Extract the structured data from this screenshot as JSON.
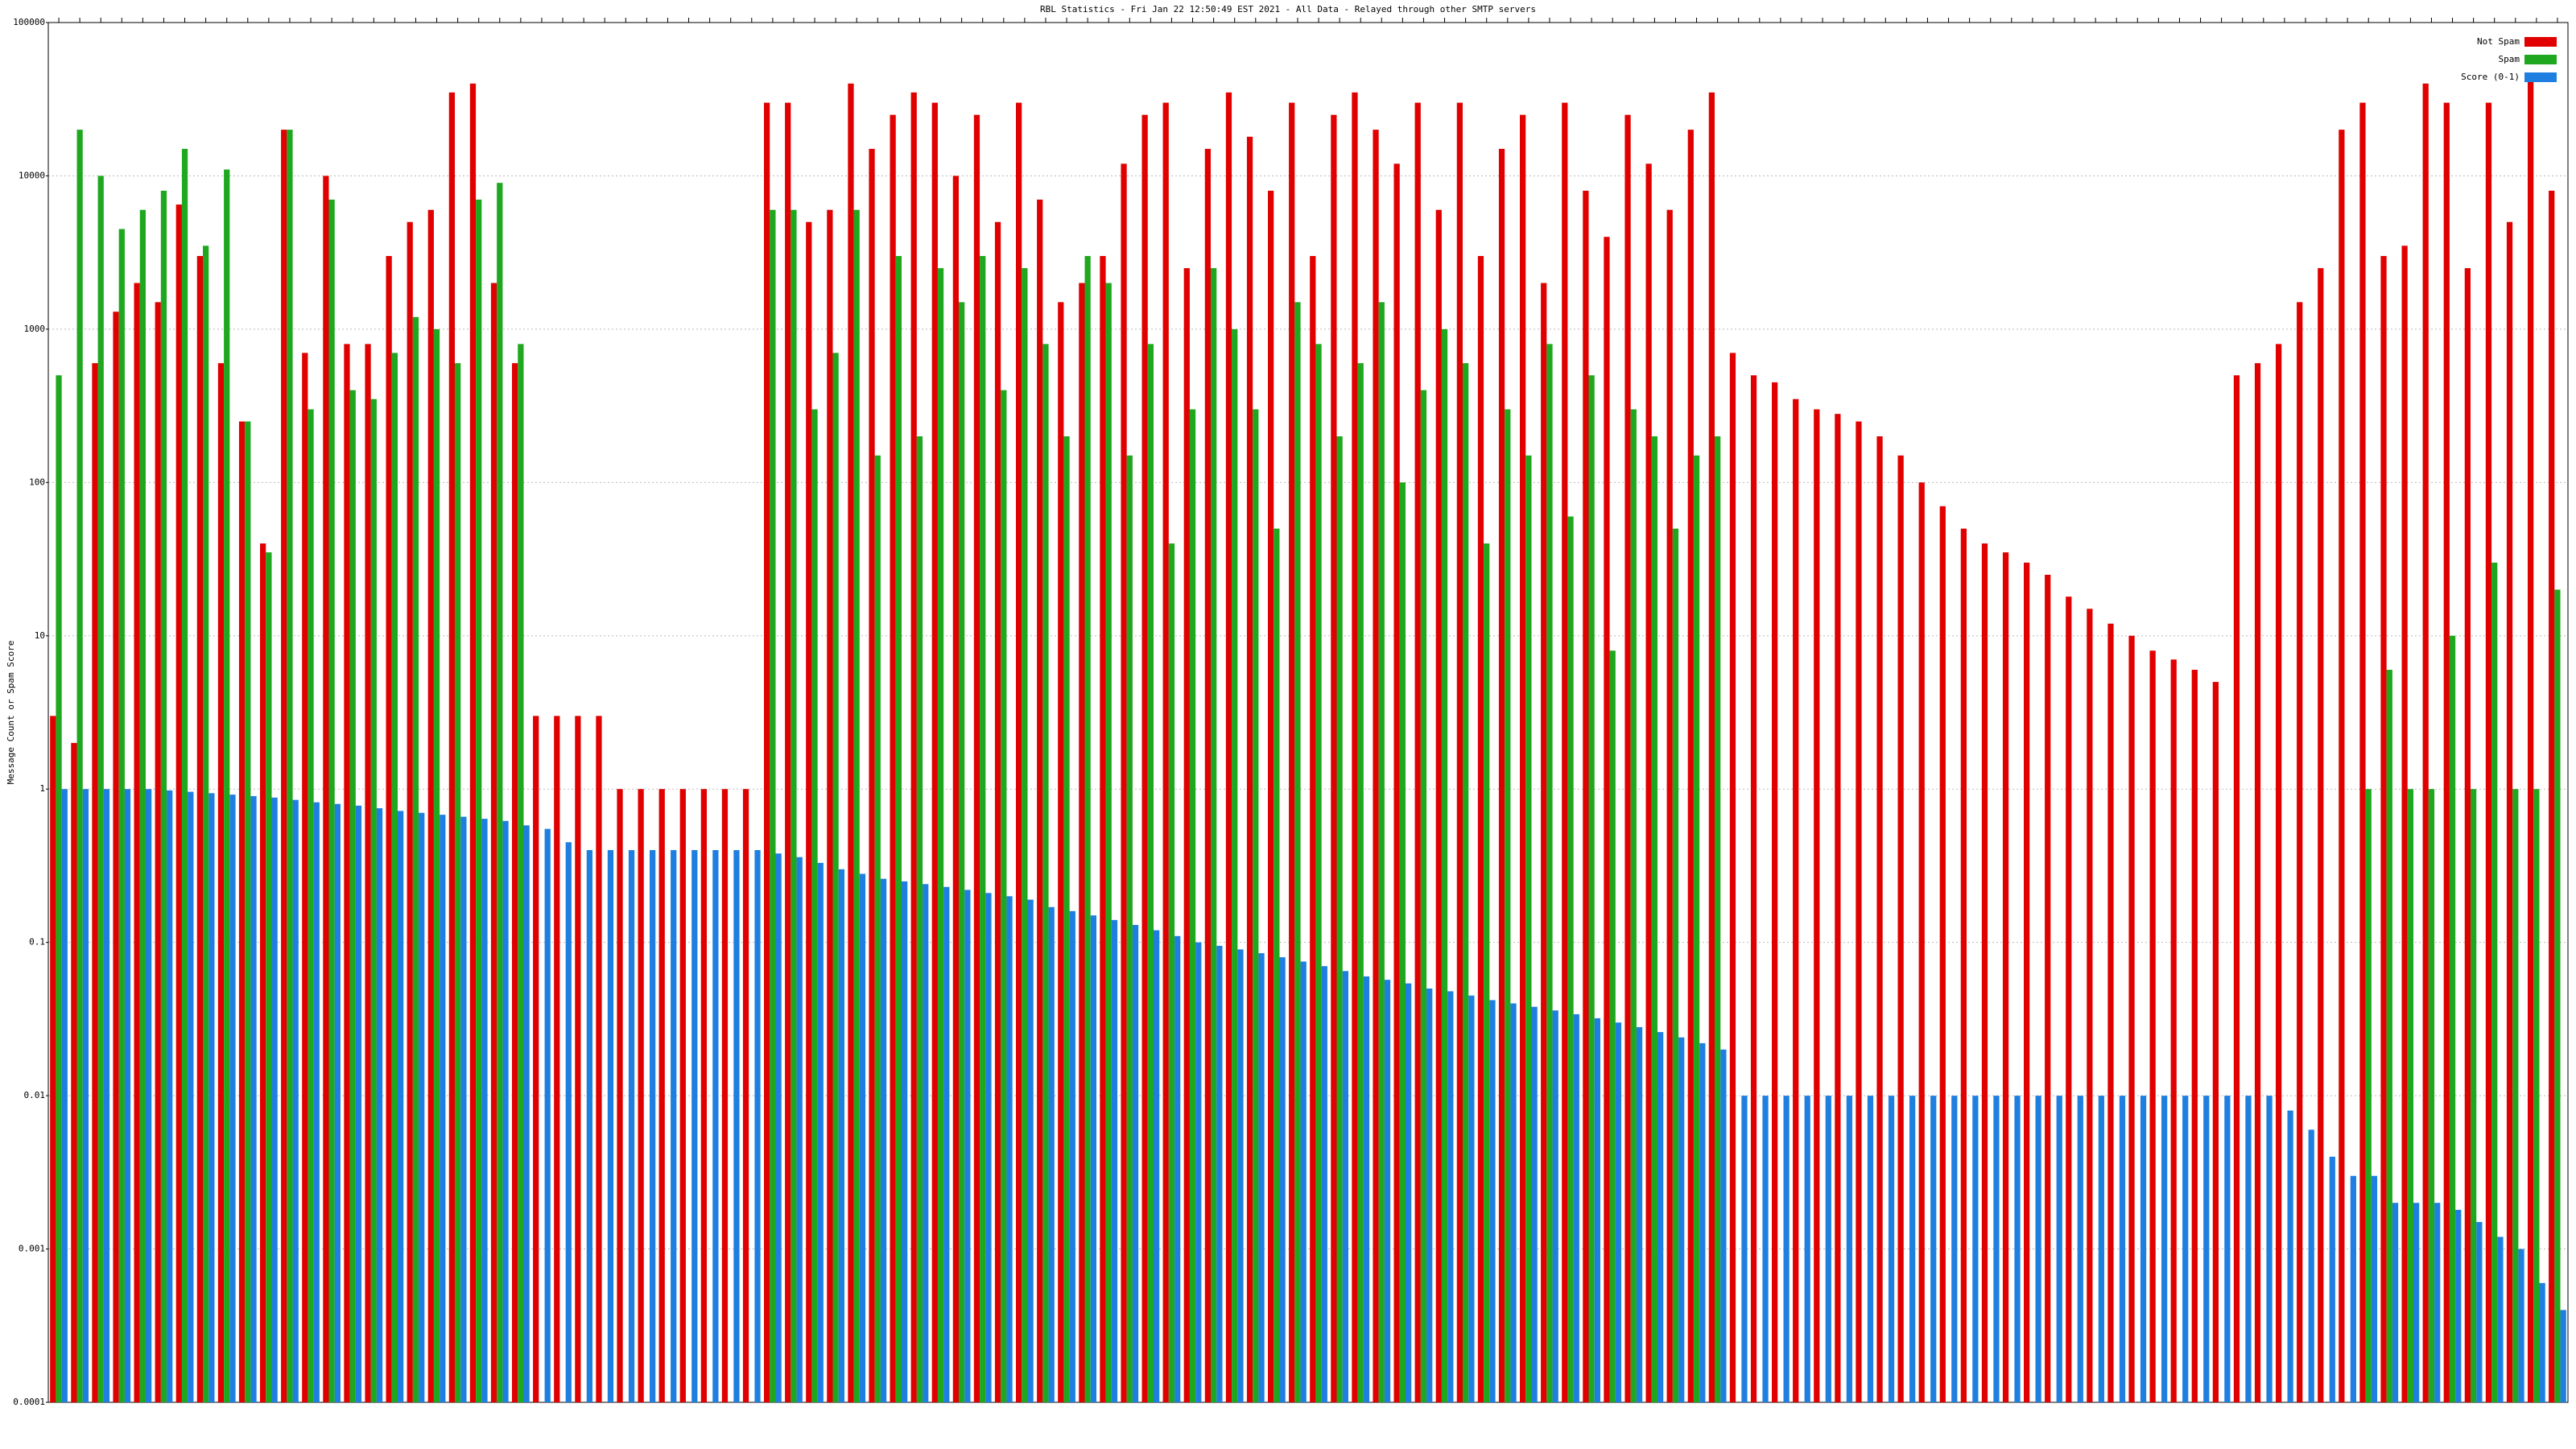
{
  "chart_data": {
    "type": "bar",
    "title": "RBL Statistics - Fri Jan 22 12:50:49 EST 2021 - All Data - Relayed through other SMTP servers",
    "y_label": "Message Count or Spam Score",
    "log_scale": true,
    "grid": true,
    "legend": "upper right",
    "ylim": [
      0.0001,
      100000
    ],
    "yticks": [
      0.0001,
      0.001,
      0.01,
      0.1,
      1,
      10,
      100,
      1000,
      10000,
      100000
    ],
    "categories": [
      null,
      null,
      null,
      null,
      null,
      null,
      null,
      null,
      null,
      null,
      null,
      null,
      null,
      null,
      null,
      null,
      null,
      null,
      null,
      null,
      null,
      null,
      null,
      null,
      null,
      null,
      null,
      null,
      null,
      null,
      null,
      null,
      null,
      null,
      null,
      null,
      null,
      null,
      null,
      null,
      null,
      null,
      null,
      null,
      null,
      null,
      null,
      null,
      null,
      null,
      null,
      null,
      null,
      null,
      null,
      null,
      null,
      null,
      null,
      null,
      null,
      null,
      null,
      null,
      null,
      null,
      null,
      null,
      null,
      null,
      null,
      null,
      null,
      null,
      null,
      null,
      null,
      null,
      null,
      null,
      null,
      null,
      null,
      null,
      null,
      null,
      null,
      null,
      null,
      null,
      null,
      null,
      null,
      null,
      null,
      null,
      null,
      null,
      null,
      null,
      null,
      null,
      null,
      null,
      null,
      null,
      null,
      null,
      null,
      null,
      null,
      null,
      null,
      null,
      null,
      null,
      null,
      null,
      null,
      null
    ],
    "series": [
      {
        "name": "Not Spam",
        "color": "#e00000",
        "values": [
          3,
          2,
          600,
          1300,
          2000,
          1500,
          6500,
          3000,
          600,
          250,
          40,
          20000,
          700,
          10000,
          800,
          800,
          3000,
          5000,
          6000,
          35000,
          40000,
          2000,
          600,
          3,
          3,
          3,
          3,
          1,
          1,
          1,
          1,
          1,
          1,
          1,
          30000,
          30000,
          5000,
          6000,
          40000,
          15000,
          25000,
          35000,
          30000,
          10000,
          25000,
          5000,
          30000,
          7000,
          1500,
          2000,
          3000,
          12000,
          25000,
          30000,
          2500,
          15000,
          35000,
          18000,
          8000,
          30000,
          3000,
          25000,
          35000,
          20000,
          12000,
          30000,
          6000,
          30000,
          3000,
          15000,
          25000,
          2000,
          30000,
          8000,
          4000,
          25000,
          12000,
          6000,
          20000,
          35000,
          700,
          500,
          450,
          350,
          300,
          280,
          250,
          200,
          150,
          100,
          70,
          50,
          40,
          35,
          30,
          25,
          18,
          15,
          12,
          10,
          8,
          7,
          6,
          5,
          500,
          600,
          800,
          1500,
          2500,
          20000,
          30000,
          3000,
          3500,
          40000,
          30000,
          2500,
          30000,
          5000,
          45000,
          8000
        ]
      },
      {
        "name": "Spam",
        "color": "#1fa81f",
        "values": [
          500,
          20000,
          10000,
          4500,
          6000,
          8000,
          15000,
          3500,
          11000,
          250,
          35,
          20000,
          300,
          7000,
          400,
          350,
          700,
          1200,
          1000,
          600,
          7000,
          9000,
          800,
          null,
          null,
          null,
          null,
          null,
          null,
          null,
          null,
          null,
          null,
          null,
          6000,
          6000,
          300,
          700,
          6000,
          150,
          3000,
          200,
          2500,
          1500,
          3000,
          400,
          2500,
          800,
          200,
          3000,
          2000,
          150,
          800,
          40,
          300,
          2500,
          1000,
          300,
          50,
          1500,
          800,
          200,
          600,
          1500,
          100,
          400,
          1000,
          600,
          40,
          300,
          150,
          800,
          60,
          500,
          8,
          300,
          200,
          50,
          150,
          200,
          null,
          null,
          null,
          null,
          null,
          null,
          null,
          null,
          null,
          null,
          null,
          null,
          null,
          null,
          null,
          null,
          null,
          null,
          null,
          null,
          null,
          null,
          null,
          null,
          null,
          null,
          null,
          null,
          null,
          null,
          1,
          6,
          1,
          1,
          10,
          1,
          30,
          1,
          1,
          20
        ]
      },
      {
        "name": "Score (0-1)",
        "color": "#1f7fe0",
        "values": [
          1,
          1,
          1,
          1,
          1,
          0.98,
          0.96,
          0.94,
          0.92,
          0.9,
          0.88,
          0.85,
          0.82,
          0.8,
          0.78,
          0.75,
          0.72,
          0.7,
          0.68,
          0.66,
          0.64,
          0.62,
          0.58,
          0.55,
          0.45,
          0.4,
          0.4,
          0.4,
          0.4,
          0.4,
          0.4,
          0.4,
          0.4,
          0.4,
          0.38,
          0.36,
          0.33,
          0.3,
          0.28,
          0.26,
          0.25,
          0.24,
          0.23,
          0.22,
          0.21,
          0.2,
          0.19,
          0.17,
          0.16,
          0.15,
          0.14,
          0.13,
          0.12,
          0.11,
          0.1,
          0.095,
          0.09,
          0.085,
          0.08,
          0.075,
          0.07,
          0.065,
          0.06,
          0.057,
          0.054,
          0.05,
          0.048,
          0.045,
          0.042,
          0.04,
          0.038,
          0.036,
          0.034,
          0.032,
          0.03,
          0.028,
          0.026,
          0.024,
          0.022,
          0.02,
          0.01,
          0.01,
          0.01,
          0.01,
          0.01,
          0.01,
          0.01,
          0.01,
          0.01,
          0.01,
          0.01,
          0.01,
          0.01,
          0.01,
          0.01,
          0.01,
          0.01,
          0.01,
          0.01,
          0.01,
          0.01,
          0.01,
          0.01,
          0.01,
          0.01,
          0.01,
          0.008,
          0.006,
          0.004,
          0.003,
          0.003,
          0.002,
          0.002,
          0.002,
          0.0018,
          0.0015,
          0.0012,
          0.001,
          0.0006,
          0.0004
        ]
      }
    ]
  }
}
